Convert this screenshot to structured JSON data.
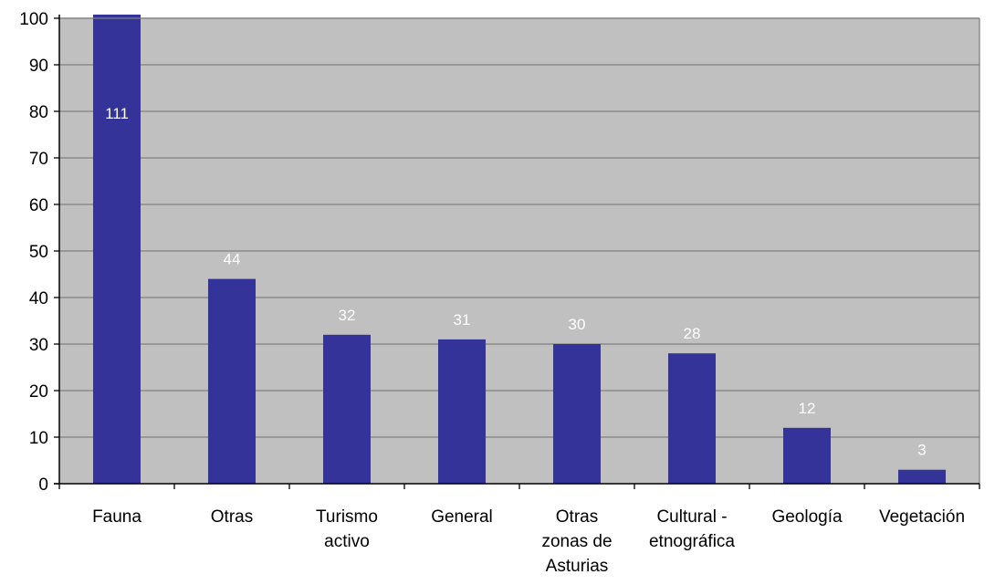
{
  "chart_data": {
    "type": "bar",
    "categories": [
      [
        "Fauna"
      ],
      [
        "Otras"
      ],
      [
        "Turismo",
        "activo"
      ],
      [
        "General"
      ],
      [
        "Otras",
        "zonas de",
        "Asturias"
      ],
      [
        "Cultural -",
        "etnográfica"
      ],
      [
        "Geología"
      ],
      [
        "Vegetación"
      ]
    ],
    "values": [
      111,
      44,
      32,
      31,
      30,
      28,
      12,
      3
    ],
    "data_labels": [
      "111",
      "44",
      "32",
      "31",
      "30",
      "28",
      "12",
      "3"
    ],
    "ylim": [
      0,
      100
    ],
    "yticks": [
      0,
      10,
      20,
      30,
      40,
      50,
      60,
      70,
      80,
      90,
      100
    ],
    "grid": true,
    "legend": "none",
    "colors": {
      "bar": "#333399",
      "plot_background": "#c0c0c0",
      "gridline": "#808080",
      "data_label": "#ffffff"
    }
  }
}
